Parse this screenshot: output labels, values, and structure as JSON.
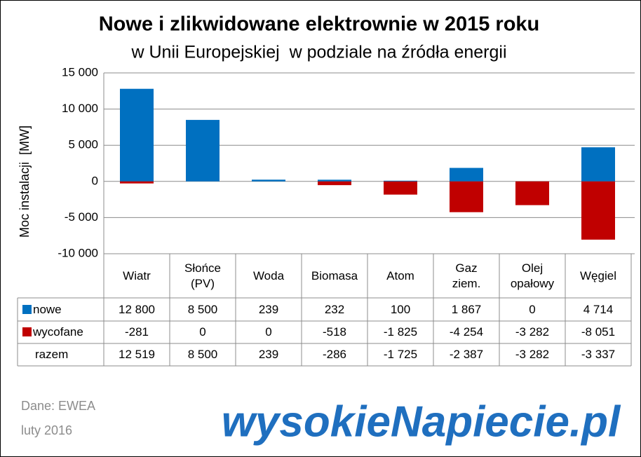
{
  "chart_data": {
    "type": "bar",
    "title": "Nowe i zlikwidowane elektrownie w 2015 roku",
    "subtitle": "w Unii Europejskiej  w podziale na źródła energii",
    "y_label": "Moc instalacji  [MW]",
    "categories": [
      "Wiatr",
      "Słońce\n(PV)",
      "Woda",
      "Biomasa",
      "Atom",
      "Gaz\nziem.",
      "Olej\nopałowy",
      "Węgiel"
    ],
    "series": [
      {
        "name": "nowe",
        "color": "#0070c0",
        "values": [
          12800,
          8500,
          239,
          232,
          100,
          1867,
          0,
          4714
        ],
        "value_labels": [
          "12 800",
          "8 500",
          "239",
          "232",
          "100",
          "1 867",
          "0",
          "4 714"
        ]
      },
      {
        "name": "wycofane",
        "color": "#c00000",
        "values": [
          -281,
          0,
          0,
          -518,
          -1825,
          -4254,
          -3282,
          -8051
        ],
        "value_labels": [
          "-281",
          "0",
          "0",
          "-518",
          "-1 825",
          "-4 254",
          "-3 282",
          "-8 051"
        ]
      }
    ],
    "total": {
      "name": "razem",
      "values": [
        12519,
        8500,
        239,
        -286,
        -1725,
        -2387,
        -3282,
        -3337
      ],
      "value_labels": [
        "12 519",
        "8 500",
        "239",
        "-286",
        "-1 725",
        "-2 387",
        "-3 282",
        "-3 337"
      ]
    },
    "ylim": [
      -10000,
      15000
    ],
    "yticks": [
      {
        "value": -10000,
        "label": "-10 000"
      },
      {
        "value": -5000,
        "label": "-5 000"
      },
      0,
      {
        "value": 5000,
        "label": "5 000"
      },
      {
        "value": 10000,
        "label": "10 000"
      },
      {
        "value": 15000,
        "label": "15 000"
      }
    ],
    "grid": true,
    "source": "Dane: EWEA",
    "date": "luty 2016",
    "logo": "wysokieNapiecie.pl"
  }
}
